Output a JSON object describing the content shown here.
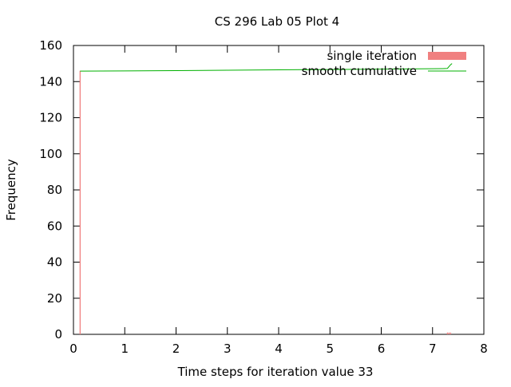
{
  "chart_data": {
    "type": "bar",
    "title": "CS 296 Lab 05 Plot 4",
    "xlabel": "Time steps for iteration value 33",
    "ylabel": "Frequency",
    "xlim": [
      0,
      8
    ],
    "ylim": [
      0,
      160
    ],
    "xticks": [
      "0",
      "1",
      "2",
      "3",
      "4",
      "5",
      "6",
      "7",
      "8"
    ],
    "yticks": [
      "0",
      "20",
      "40",
      "60",
      "80",
      "100",
      "120",
      "140",
      "160"
    ],
    "grid": false,
    "legend_position": "top-right",
    "colors": {
      "single": "#f08080",
      "smooth": "#00b000"
    },
    "series": [
      {
        "name": "single iteration",
        "kind": "bar",
        "bin_width": 0.02,
        "x": [
          0.13,
          7.29,
          7.32,
          7.35
        ],
        "values": [
          146,
          1,
          1,
          1
        ]
      },
      {
        "name": "smooth cumulative",
        "kind": "line",
        "x": [
          0.13,
          1,
          2,
          3,
          4,
          5,
          6,
          7,
          7.2,
          7.29,
          7.32,
          7.35,
          7.38
        ],
        "values": [
          145.8,
          145.9,
          146.1,
          146.3,
          146.5,
          146.7,
          146.9,
          147.1,
          147.2,
          147.3,
          148.3,
          149.3,
          150.0
        ]
      }
    ]
  }
}
